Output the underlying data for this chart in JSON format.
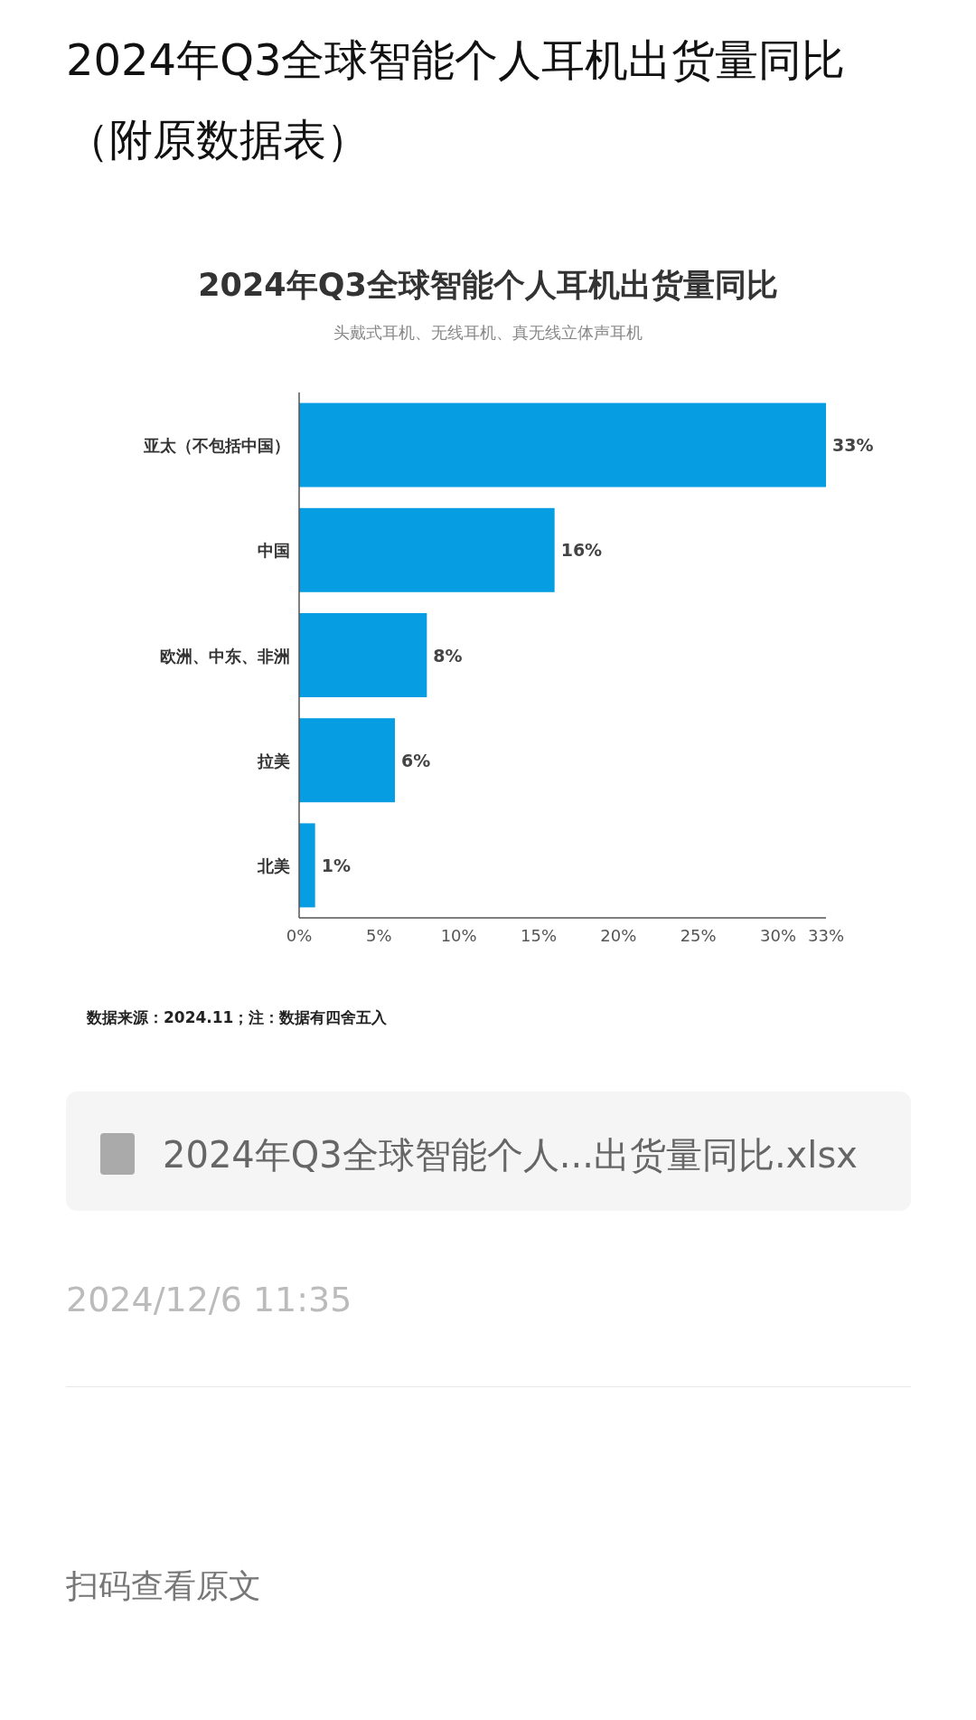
{
  "chart_data": {
    "type": "bar",
    "orientation": "horizontal",
    "title": "2024年Q3全球智能个人耳机出货量同比",
    "subtitle": "头戴式耳机、无线耳机、真无线立体声耳机",
    "categories": [
      "亚太（不包括中国）",
      "中国",
      "欧洲、中东、非洲",
      "拉美",
      "北美"
    ],
    "values": [
      33,
      16,
      8,
      6,
      1
    ],
    "value_labels": [
      "33%",
      "16%",
      "8%",
      "6%",
      "1%"
    ],
    "color": "#069de3",
    "xlim": [
      0,
      33
    ],
    "xticks": [
      {
        "value": 0,
        "label": "0%"
      },
      {
        "value": 5,
        "label": "5%"
      },
      {
        "value": 10,
        "label": "10%"
      },
      {
        "value": 15,
        "label": "15%"
      },
      {
        "value": 20,
        "label": "20%"
      },
      {
        "value": 25,
        "label": "25%"
      },
      {
        "value": 30,
        "label": "30%"
      },
      {
        "value": 33,
        "label": "33%"
      }
    ],
    "grid": false,
    "annotations": [
      "2024年Q3全球智能个人耳机出货量同比（附原数据表）",
      "数据来源：2024.11；注：数据有四舍五入",
      "2024年Q3全球智能个人...出货量同比.xlsx",
      "2024/12/6 11:35",
      "扫码查看原文"
    ]
  }
}
